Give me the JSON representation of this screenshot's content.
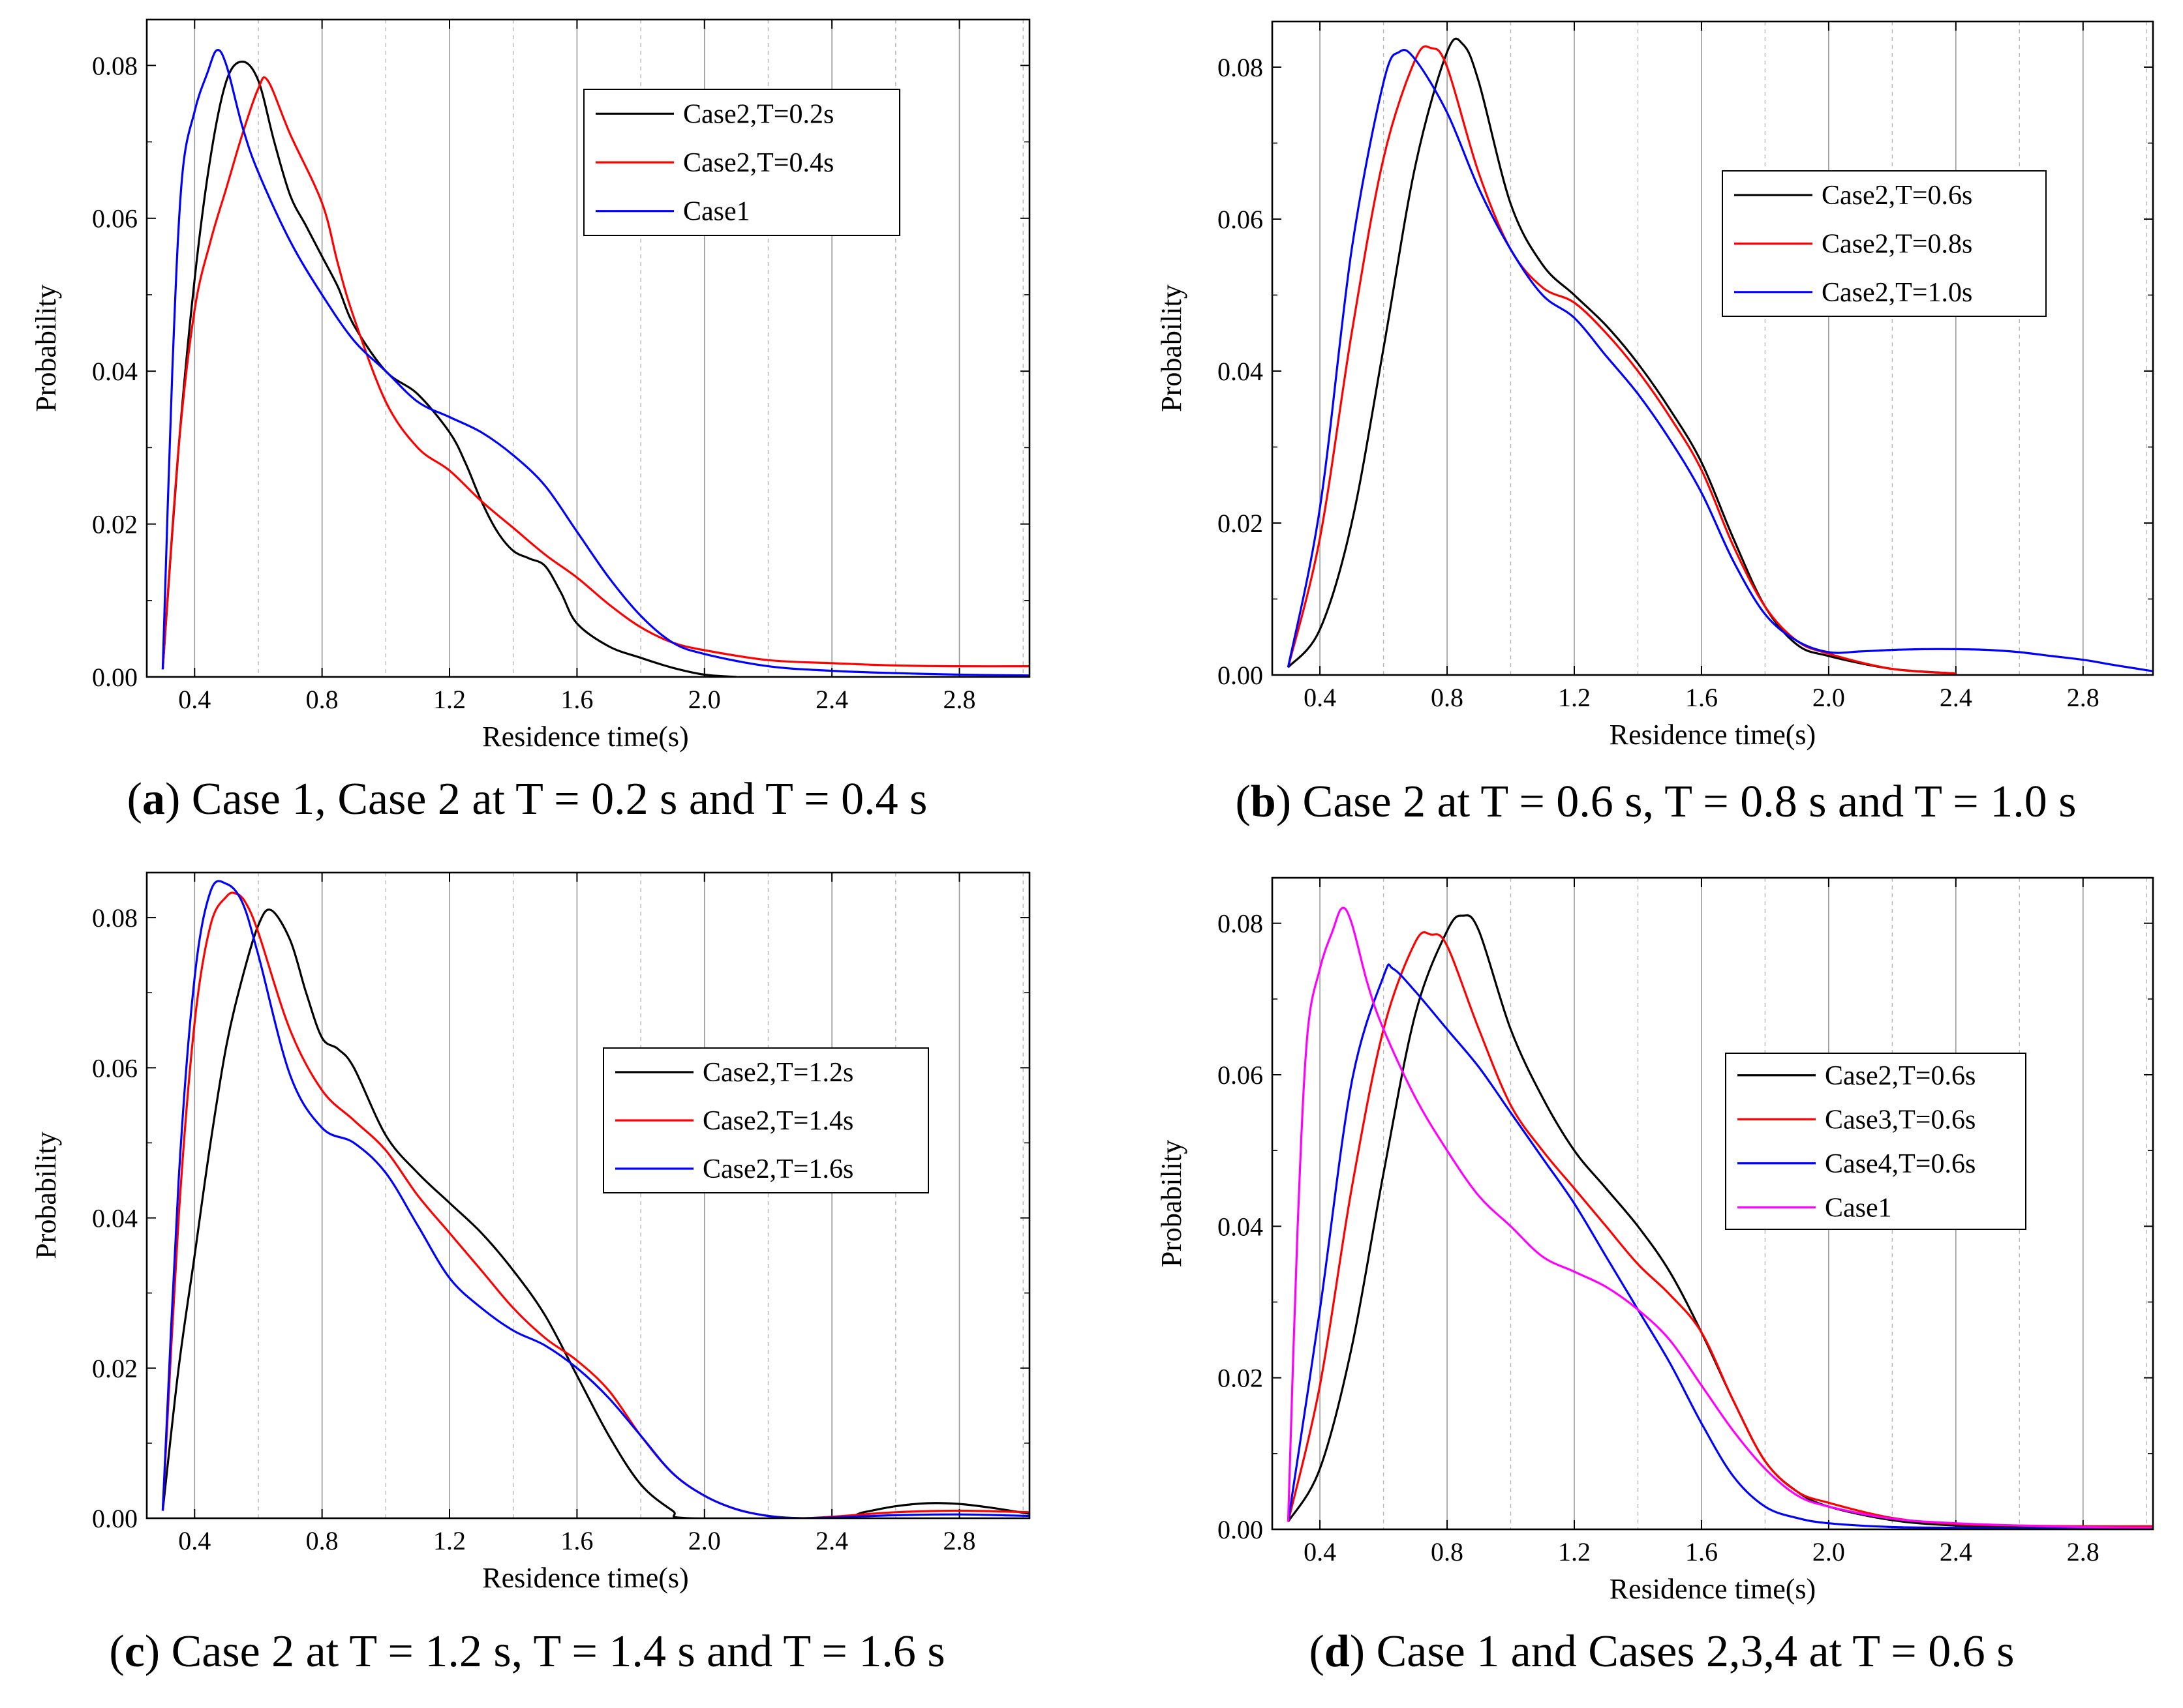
{
  "chart_data": [
    {
      "type": "line",
      "caption": {
        "label": "a",
        "text": "Case 1, Case 2 at T = 0.2 s and T = 0.4 s"
      },
      "xlabel": "Residence time(s)",
      "ylabel": "Probability",
      "xlim": [
        0.25,
        3.02
      ],
      "ylim": [
        0.0,
        0.086
      ],
      "xticks": [
        "0.4",
        "0.8",
        "1.2",
        "1.6",
        "2.0",
        "2.4",
        "2.8"
      ],
      "yticks": [
        "0.00",
        "0.02",
        "0.04",
        "0.06",
        "0.08"
      ],
      "grid": "vertical",
      "legend_position": "top-right",
      "series": [
        {
          "name": "Case2,T=0.2s",
          "color": "#000000",
          "x": [
            0.3,
            0.35,
            0.4,
            0.45,
            0.5,
            0.55,
            0.6,
            0.65,
            0.7,
            0.75,
            0.8,
            0.85,
            0.9,
            1.0,
            1.1,
            1.2,
            1.25,
            1.3,
            1.35,
            1.4,
            1.45,
            1.5,
            1.55,
            1.6,
            1.7,
            1.8,
            1.9,
            2.0,
            2.1
          ],
          "y": [
            0.001,
            0.03,
            0.052,
            0.068,
            0.078,
            0.0805,
            0.078,
            0.07,
            0.063,
            0.059,
            0.055,
            0.051,
            0.046,
            0.04,
            0.037,
            0.032,
            0.028,
            0.023,
            0.019,
            0.0165,
            0.0155,
            0.0145,
            0.011,
            0.007,
            0.004,
            0.0025,
            0.0012,
            0.0003,
            0.0
          ]
        },
        {
          "name": "Case2,T=0.4s",
          "color": "#ff0000",
          "x": [
            0.3,
            0.35,
            0.4,
            0.45,
            0.5,
            0.55,
            0.6,
            0.63,
            0.7,
            0.8,
            0.85,
            0.9,
            1.0,
            1.1,
            1.2,
            1.3,
            1.4,
            1.5,
            1.6,
            1.7,
            1.8,
            1.9,
            2.0,
            2.2,
            2.4,
            2.6,
            2.8,
            3.02
          ],
          "y": [
            0.001,
            0.03,
            0.048,
            0.057,
            0.064,
            0.071,
            0.077,
            0.078,
            0.071,
            0.062,
            0.054,
            0.047,
            0.036,
            0.03,
            0.027,
            0.023,
            0.0195,
            0.016,
            0.013,
            0.0095,
            0.0065,
            0.0045,
            0.0035,
            0.0022,
            0.0018,
            0.0015,
            0.0014,
            0.0014
          ]
        },
        {
          "name": "Case1",
          "color": "#0000ff",
          "x": [
            0.3,
            0.33,
            0.36,
            0.4,
            0.44,
            0.47,
            0.5,
            0.55,
            0.6,
            0.7,
            0.8,
            0.9,
            1.0,
            1.1,
            1.2,
            1.3,
            1.4,
            1.5,
            1.6,
            1.7,
            1.8,
            1.9,
            2.0,
            2.2,
            2.4,
            2.6,
            2.8,
            3.02
          ],
          "y": [
            0.001,
            0.04,
            0.065,
            0.074,
            0.079,
            0.082,
            0.08,
            0.072,
            0.066,
            0.057,
            0.05,
            0.044,
            0.04,
            0.036,
            0.034,
            0.032,
            0.029,
            0.025,
            0.019,
            0.013,
            0.008,
            0.0045,
            0.003,
            0.0014,
            0.0008,
            0.0005,
            0.0003,
            0.0002
          ]
        }
      ]
    },
    {
      "type": "line",
      "caption": {
        "label": "b",
        "text": "Case 2 at T = 0.6 s, T = 0.8 s and T = 1.0 s"
      },
      "xlabel": "Residence time(s)",
      "ylabel": "Probability",
      "xlim": [
        0.25,
        3.02
      ],
      "ylim": [
        0.0,
        0.086
      ],
      "xticks": [
        "0.4",
        "0.8",
        "1.2",
        "1.6",
        "2.0",
        "2.4",
        "2.8"
      ],
      "yticks": [
        "0.00",
        "0.02",
        "0.04",
        "0.06",
        "0.08"
      ],
      "grid": "vertical",
      "legend_position": "top-right",
      "series": [
        {
          "name": "Case2,T=0.6s",
          "color": "#000000",
          "x": [
            0.3,
            0.4,
            0.5,
            0.6,
            0.7,
            0.8,
            0.85,
            0.9,
            1.0,
            1.1,
            1.2,
            1.3,
            1.4,
            1.5,
            1.6,
            1.7,
            1.8,
            1.9,
            2.0,
            2.2,
            2.4
          ],
          "y": [
            0.001,
            0.006,
            0.02,
            0.043,
            0.067,
            0.082,
            0.083,
            0.078,
            0.062,
            0.054,
            0.05,
            0.046,
            0.041,
            0.035,
            0.028,
            0.018,
            0.009,
            0.004,
            0.0025,
            0.0008,
            0.0002
          ]
        },
        {
          "name": "Case2,T=0.8s",
          "color": "#ff0000",
          "x": [
            0.3,
            0.4,
            0.5,
            0.6,
            0.7,
            0.75,
            0.8,
            0.9,
            1.0,
            1.1,
            1.2,
            1.3,
            1.4,
            1.5,
            1.6,
            1.7,
            1.8,
            1.9,
            2.0,
            2.2,
            2.4
          ],
          "y": [
            0.001,
            0.018,
            0.045,
            0.068,
            0.081,
            0.0825,
            0.08,
            0.066,
            0.056,
            0.051,
            0.049,
            0.045,
            0.04,
            0.034,
            0.027,
            0.017,
            0.009,
            0.0045,
            0.0028,
            0.0008,
            0.0002
          ]
        },
        {
          "name": "Case2,T=1.0s",
          "color": "#0000ff",
          "x": [
            0.3,
            0.4,
            0.5,
            0.6,
            0.65,
            0.7,
            0.8,
            0.9,
            1.0,
            1.1,
            1.2,
            1.3,
            1.4,
            1.5,
            1.6,
            1.7,
            1.8,
            1.9,
            2.0,
            2.1,
            2.2,
            2.3,
            2.4,
            2.5,
            2.6,
            2.7,
            2.8,
            2.9,
            3.02
          ],
          "y": [
            0.001,
            0.022,
            0.056,
            0.078,
            0.082,
            0.081,
            0.074,
            0.064,
            0.056,
            0.05,
            0.047,
            0.042,
            0.037,
            0.031,
            0.024,
            0.015,
            0.008,
            0.0045,
            0.003,
            0.0031,
            0.0033,
            0.0034,
            0.0034,
            0.0033,
            0.003,
            0.0025,
            0.002,
            0.0013,
            0.0005
          ]
        }
      ]
    },
    {
      "type": "line",
      "caption": {
        "label": "c",
        "text": "Case 2 at T = 1.2 s, T = 1.4 s and T = 1.6 s"
      },
      "xlabel": "Residence time(s)",
      "ylabel": "Probability",
      "xlim": [
        0.25,
        3.02
      ],
      "ylim": [
        0.0,
        0.086
      ],
      "xticks": [
        "0.4",
        "0.8",
        "1.2",
        "1.6",
        "2.0",
        "2.4",
        "2.8"
      ],
      "yticks": [
        "0.00",
        "0.02",
        "0.04",
        "0.06",
        "0.08"
      ],
      "grid": "vertical",
      "legend_position": "center-right",
      "series": [
        {
          "name": "Case2,T=1.2s",
          "color": "#000000",
          "x": [
            0.3,
            0.35,
            0.4,
            0.45,
            0.5,
            0.55,
            0.6,
            0.64,
            0.7,
            0.75,
            0.8,
            0.85,
            0.9,
            1.0,
            1.1,
            1.2,
            1.3,
            1.4,
            1.5,
            1.6,
            1.7,
            1.8,
            1.9,
            1.95,
            2.4,
            2.5,
            2.6,
            2.7,
            2.8,
            2.9,
            3.02
          ],
          "y": [
            0.001,
            0.02,
            0.035,
            0.05,
            0.063,
            0.072,
            0.079,
            0.081,
            0.077,
            0.07,
            0.064,
            0.0625,
            0.06,
            0.051,
            0.046,
            0.042,
            0.038,
            0.033,
            0.027,
            0.019,
            0.011,
            0.0045,
            0.001,
            0.0,
            0.0,
            0.0008,
            0.0016,
            0.002,
            0.0019,
            0.0014,
            0.0006
          ]
        },
        {
          "name": "Case2,T=1.4s",
          "color": "#ff0000",
          "x": [
            0.3,
            0.35,
            0.4,
            0.45,
            0.5,
            0.53,
            0.56,
            0.6,
            0.7,
            0.8,
            0.9,
            1.0,
            1.1,
            1.2,
            1.3,
            1.4,
            1.5,
            1.6,
            1.7,
            1.8,
            1.9,
            2.0,
            2.1,
            2.2,
            2.3,
            2.4,
            2.6,
            2.8,
            3.02
          ],
          "y": [
            0.001,
            0.04,
            0.066,
            0.079,
            0.0828,
            0.0832,
            0.082,
            0.078,
            0.065,
            0.057,
            0.053,
            0.049,
            0.043,
            0.038,
            0.033,
            0.028,
            0.024,
            0.021,
            0.017,
            0.011,
            0.006,
            0.003,
            0.0012,
            0.0003,
            0.0,
            0.0002,
            0.0008,
            0.001,
            0.0008
          ]
        },
        {
          "name": "Case2,T=1.6s",
          "color": "#0000ff",
          "x": [
            0.3,
            0.35,
            0.4,
            0.45,
            0.5,
            0.55,
            0.6,
            0.7,
            0.8,
            0.9,
            1.0,
            1.1,
            1.2,
            1.3,
            1.4,
            1.5,
            1.6,
            1.7,
            1.8,
            1.9,
            2.0,
            2.1,
            2.2,
            2.3,
            2.4,
            2.6,
            2.8,
            3.02
          ],
          "y": [
            0.001,
            0.045,
            0.072,
            0.0835,
            0.0845,
            0.082,
            0.075,
            0.059,
            0.052,
            0.05,
            0.046,
            0.039,
            0.032,
            0.028,
            0.025,
            0.023,
            0.02,
            0.016,
            0.011,
            0.006,
            0.003,
            0.0012,
            0.0003,
            0.0,
            0.0001,
            0.0004,
            0.0005,
            0.0003
          ]
        }
      ]
    },
    {
      "type": "line",
      "caption": {
        "label": "d",
        "text": "Case 1 and Cases 2,3,4 at T = 0.6 s"
      },
      "xlabel": "Residence time(s)",
      "ylabel": "Probability",
      "xlim": [
        0.25,
        3.02
      ],
      "ylim": [
        0.0,
        0.086
      ],
      "xticks": [
        "0.4",
        "0.8",
        "1.2",
        "1.6",
        "2.0",
        "2.4",
        "2.8"
      ],
      "yticks": [
        "0.00",
        "0.02",
        "0.04",
        "0.06",
        "0.08"
      ],
      "grid": "vertical",
      "legend_position": "center-right",
      "series": [
        {
          "name": "Case2,T=0.6s",
          "color": "#000000",
          "x": [
            0.3,
            0.4,
            0.5,
            0.6,
            0.7,
            0.8,
            0.85,
            0.9,
            1.0,
            1.1,
            1.2,
            1.3,
            1.4,
            1.5,
            1.6,
            1.7,
            1.8,
            1.9,
            2.0,
            2.2,
            2.4,
            2.6,
            2.8,
            3.02
          ],
          "y": [
            0.001,
            0.008,
            0.024,
            0.047,
            0.068,
            0.079,
            0.081,
            0.079,
            0.066,
            0.057,
            0.05,
            0.045,
            0.04,
            0.034,
            0.026,
            0.017,
            0.009,
            0.005,
            0.003,
            0.0012,
            0.0005,
            0.0003,
            0.0003,
            0.0003
          ]
        },
        {
          "name": "Case3,T=0.6s",
          "color": "#ff0000",
          "x": [
            0.3,
            0.4,
            0.5,
            0.6,
            0.7,
            0.75,
            0.8,
            0.9,
            1.0,
            1.1,
            1.2,
            1.3,
            1.4,
            1.5,
            1.6,
            1.7,
            1.8,
            1.9,
            2.0,
            2.2,
            2.4,
            2.6,
            2.8,
            3.02
          ],
          "y": [
            0.001,
            0.019,
            0.045,
            0.066,
            0.0775,
            0.0785,
            0.077,
            0.066,
            0.056,
            0.05,
            0.045,
            0.04,
            0.035,
            0.031,
            0.026,
            0.017,
            0.009,
            0.005,
            0.0035,
            0.0015,
            0.0007,
            0.0005,
            0.0004,
            0.0004
          ]
        },
        {
          "name": "Case4,T=0.6s",
          "color": "#0000ff",
          "x": [
            0.3,
            0.4,
            0.5,
            0.6,
            0.63,
            0.7,
            0.8,
            0.9,
            1.0,
            1.1,
            1.2,
            1.3,
            1.4,
            1.5,
            1.6,
            1.7,
            1.8,
            1.9,
            2.0,
            2.2,
            2.4,
            2.6,
            2.8,
            3.02
          ],
          "y": [
            0.001,
            0.029,
            0.059,
            0.073,
            0.074,
            0.071,
            0.066,
            0.061,
            0.055,
            0.049,
            0.043,
            0.036,
            0.029,
            0.022,
            0.014,
            0.007,
            0.003,
            0.0015,
            0.0008,
            0.0003,
            0.0002,
            0.0001,
            0.0001,
            0.0001
          ]
        },
        {
          "name": "Case1",
          "color": "#ff00ff",
          "x": [
            0.3,
            0.33,
            0.36,
            0.4,
            0.44,
            0.47,
            0.5,
            0.55,
            0.6,
            0.7,
            0.8,
            0.9,
            1.0,
            1.1,
            1.2,
            1.3,
            1.4,
            1.5,
            1.6,
            1.7,
            1.8,
            1.9,
            2.0,
            2.2,
            2.4,
            2.6,
            2.8,
            3.02
          ],
          "y": [
            0.001,
            0.04,
            0.065,
            0.074,
            0.079,
            0.082,
            0.08,
            0.072,
            0.066,
            0.057,
            0.05,
            0.044,
            0.04,
            0.036,
            0.034,
            0.032,
            0.029,
            0.025,
            0.019,
            0.013,
            0.008,
            0.0045,
            0.003,
            0.0014,
            0.0008,
            0.0005,
            0.0003,
            0.0002
          ]
        }
      ]
    }
  ]
}
